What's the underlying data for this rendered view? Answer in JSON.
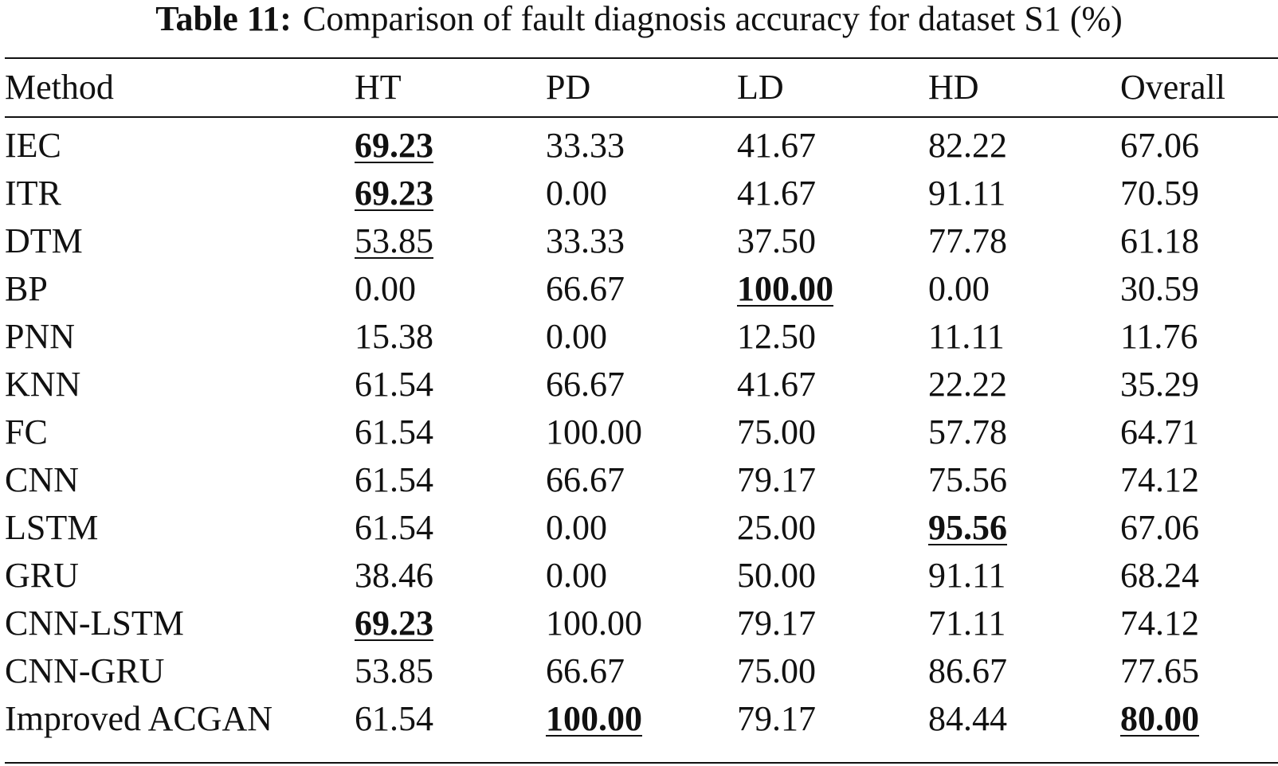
{
  "caption": {
    "label": "Table 11:",
    "text": "Comparison of fault diagnosis accuracy for dataset S1 (%)"
  },
  "table": {
    "columns": [
      "Method",
      "HT",
      "PD",
      "LD",
      "HD",
      "Overall"
    ],
    "rows": [
      {
        "cells": [
          "IEC",
          "69.23",
          "33.33",
          "41.67",
          "82.22",
          "67.06"
        ],
        "best": [
          1
        ],
        "second": []
      },
      {
        "cells": [
          "ITR",
          "69.23",
          "0.00",
          "41.67",
          "91.11",
          "70.59"
        ],
        "best": [
          1
        ],
        "second": []
      },
      {
        "cells": [
          "DTM",
          "53.85",
          "33.33",
          "37.50",
          "77.78",
          "61.18"
        ],
        "best": [],
        "second": [
          1
        ]
      },
      {
        "cells": [
          "BP",
          "0.00",
          "66.67",
          "100.00",
          "0.00",
          "30.59"
        ],
        "best": [
          3
        ],
        "second": []
      },
      {
        "cells": [
          "PNN",
          "15.38",
          "0.00",
          "12.50",
          "11.11",
          "11.76"
        ],
        "best": [],
        "second": []
      },
      {
        "cells": [
          "KNN",
          "61.54",
          "66.67",
          "41.67",
          "22.22",
          "35.29"
        ],
        "best": [],
        "second": []
      },
      {
        "cells": [
          "FC",
          "61.54",
          "100.00",
          "75.00",
          "57.78",
          "64.71"
        ],
        "best": [],
        "second": []
      },
      {
        "cells": [
          "CNN",
          "61.54",
          "66.67",
          "79.17",
          "75.56",
          "74.12"
        ],
        "best": [],
        "second": []
      },
      {
        "cells": [
          "LSTM",
          "61.54",
          "0.00",
          "25.00",
          "95.56",
          "67.06"
        ],
        "best": [
          4
        ],
        "second": []
      },
      {
        "cells": [
          "GRU",
          "38.46",
          "0.00",
          "50.00",
          "91.11",
          "68.24"
        ],
        "best": [],
        "second": []
      },
      {
        "cells": [
          "CNN-LSTM",
          "69.23",
          "100.00",
          "79.17",
          "71.11",
          "74.12"
        ],
        "best": [
          1
        ],
        "second": []
      },
      {
        "cells": [
          "CNN-GRU",
          "53.85",
          "66.67",
          "75.00",
          "86.67",
          "77.65"
        ],
        "best": [],
        "second": []
      },
      {
        "cells": [
          "Improved ACGAN",
          "61.54",
          "100.00",
          "79.17",
          "84.44",
          "80.00"
        ],
        "best": [
          2,
          5
        ],
        "second": []
      }
    ]
  }
}
